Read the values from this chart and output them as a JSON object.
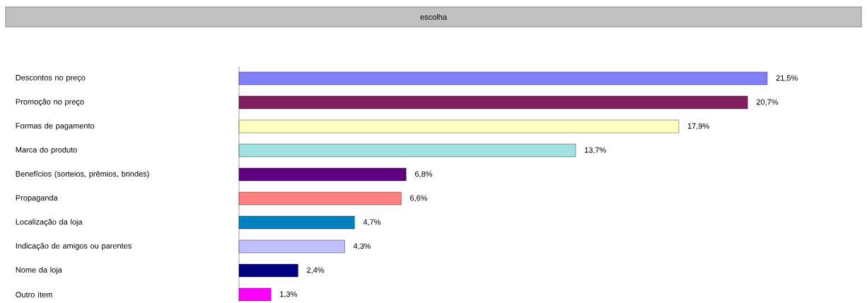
{
  "chart_data": {
    "type": "bar",
    "orientation": "horizontal",
    "title": "escolha",
    "categories": [
      "Descontos no preço",
      "Promoção no preço",
      "Formas de pagamento",
      "Marca do produto",
      "Benefícios (sorteios, prêmios, brindes)",
      "Propaganda",
      "Localização da loja",
      "Indicação de amigos ou parentes",
      "Nome da loja",
      "Outro ítem"
    ],
    "values": [
      21.5,
      20.7,
      17.9,
      13.7,
      6.8,
      6.6,
      4.7,
      4.3,
      2.4,
      1.3
    ],
    "colors": [
      "#8080ff",
      "#7f1f5f",
      "#ffffc0",
      "#a0e0e0",
      "#600080",
      "#ff8080",
      "#0080c0",
      "#c0c0ff",
      "#000080",
      "#ff00ff"
    ],
    "value_labels": [
      "21,5%",
      "20,7%",
      "17,9%",
      "13,7%",
      "6,8%",
      "6,6%",
      "4,7%",
      "4,3%",
      "2,4%",
      "1,3%"
    ]
  }
}
